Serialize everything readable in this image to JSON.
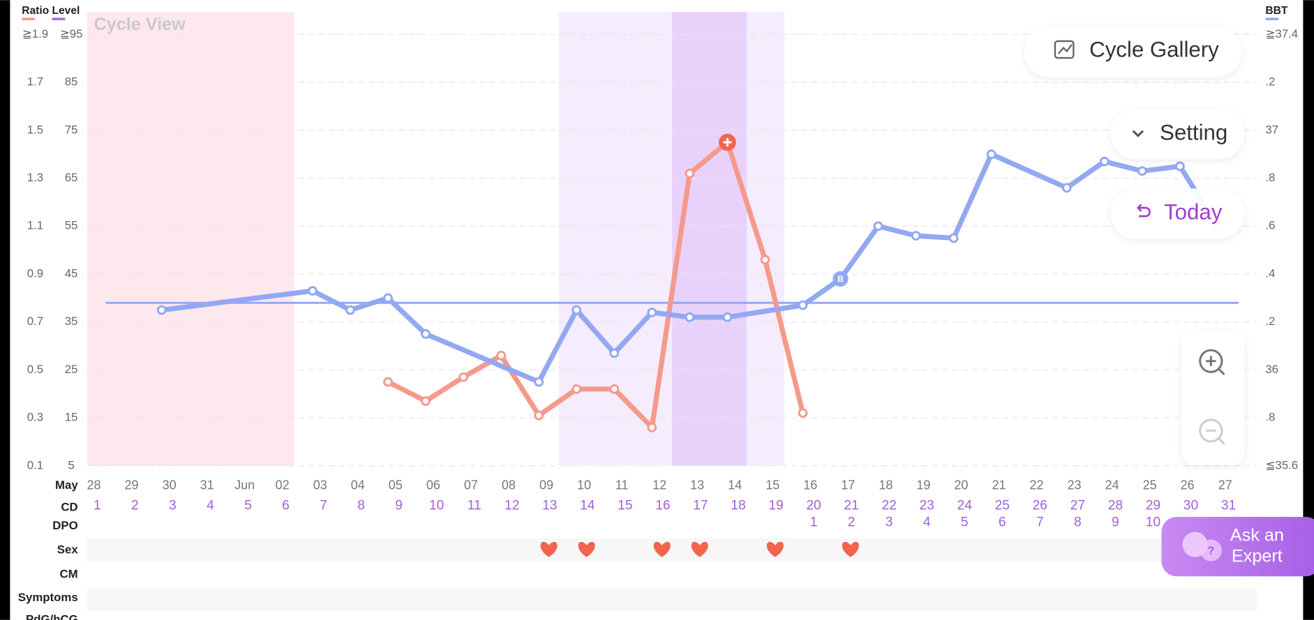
{
  "chart_data": {
    "type": "line",
    "title": "Cycle View",
    "month_label": "May",
    "categories": [
      "28",
      "29",
      "30",
      "31",
      "Jun",
      "02",
      "03",
      "04",
      "05",
      "06",
      "07",
      "08",
      "09",
      "10",
      "11",
      "12",
      "13",
      "14",
      "15",
      "16",
      "17",
      "18",
      "19",
      "20",
      "21",
      "22",
      "23",
      "24",
      "25",
      "26",
      "27"
    ],
    "cd_label": "CD",
    "cd": [
      1,
      2,
      3,
      4,
      5,
      6,
      7,
      8,
      9,
      10,
      11,
      12,
      13,
      14,
      15,
      16,
      17,
      18,
      19,
      20,
      21,
      22,
      23,
      24,
      25,
      26,
      27,
      28,
      29,
      30,
      31
    ],
    "dpo_label": "DPO",
    "dpo": [
      null,
      null,
      null,
      null,
      null,
      null,
      null,
      null,
      null,
      null,
      null,
      null,
      null,
      null,
      null,
      null,
      null,
      null,
      null,
      1,
      2,
      3,
      4,
      5,
      6,
      7,
      8,
      9,
      10,
      null,
      null
    ],
    "sex_label": "Sex",
    "sex_days": [
      13,
      14,
      16,
      17,
      19,
      21
    ],
    "cm_label": "CM",
    "symptoms_label": "Symptoms",
    "pdg_label": "PdG/hCG",
    "ylabel": "Ratio",
    "ylim": [
      0.1,
      1.9
    ],
    "yticks": [
      {
        "value": 1.9,
        "label": "≧1.9"
      },
      1.7,
      1.5,
      1.3,
      1.1,
      0.9,
      0.7,
      0.5,
      0.3,
      0.1
    ],
    "level_label": "Level",
    "level_lim": [
      5,
      95
    ],
    "level_ticks": [
      {
        "value": 95,
        "label": "≧95"
      },
      85,
      75,
      65,
      55,
      45,
      35,
      25,
      15,
      5
    ],
    "y2label": "BBT",
    "y2lim": [
      35.6,
      37.4
    ],
    "y2ticks": [
      {
        "value": 37.4,
        "label": "≧37.4"
      },
      {
        "value": 37.2,
        "label": ".2"
      },
      37,
      {
        "value": 36.8,
        "label": ".8"
      },
      {
        "value": 36.6,
        "label": ".6"
      },
      {
        "value": 36.4,
        "label": ".4"
      },
      {
        "value": 36.2,
        "label": ".2"
      },
      36,
      {
        "value": 35.8,
        "label": ".8"
      },
      {
        "value": 35.6,
        "label": "≦35.6"
      }
    ],
    "grid": true,
    "period_days": [
      1,
      6
    ],
    "fertile_days": [
      14,
      19
    ],
    "ovulation_days": [
      17,
      18
    ],
    "coverline": 36.28,
    "series": [
      {
        "name": "Ratio",
        "color": "#f59a8b",
        "x": [
          9,
          10,
          11,
          12,
          13,
          14,
          15,
          16,
          17,
          18,
          19,
          20
        ],
        "values": [
          0.45,
          0.37,
          0.47,
          0.56,
          0.31,
          0.42,
          0.42,
          0.26,
          1.32,
          1.45,
          0.96,
          0.32
        ]
      },
      {
        "name": "Level",
        "color": "#a56cf0"
      },
      {
        "name": "BBT",
        "color": "#93a8f2",
        "axis": "y2",
        "x": [
          3,
          7,
          8,
          9,
          10,
          13,
          14,
          15,
          16,
          17,
          18,
          20,
          21,
          22,
          23,
          24,
          25,
          27,
          28,
          29,
          30,
          31
        ],
        "values": [
          36.25,
          36.33,
          36.25,
          36.3,
          36.15,
          35.95,
          36.25,
          36.07,
          36.24,
          36.22,
          36.22,
          36.27,
          36.38,
          36.6,
          36.56,
          36.55,
          36.9,
          36.76,
          36.87,
          36.83,
          36.85,
          36.6
        ],
        "marker_x": 21,
        "marker_label": "B"
      }
    ],
    "buttons": {
      "gallery": "Cycle Gallery",
      "setting": "Setting",
      "today": "Today",
      "ask": [
        "Ask an",
        "Expert"
      ]
    }
  }
}
